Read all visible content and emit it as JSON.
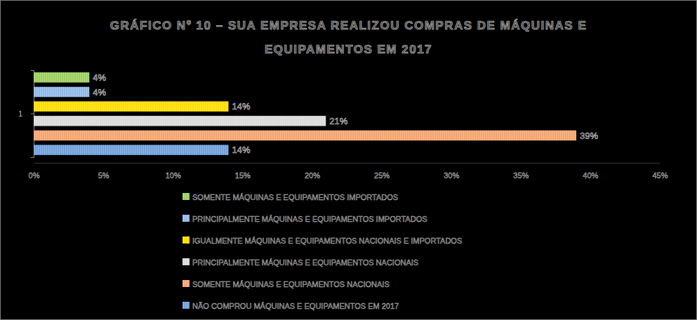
{
  "chart_data": {
    "type": "bar",
    "orientation": "horizontal",
    "title": "GRÁFICO Nº 10 – SUA EMPRESA REALIZOU COMPRAS DE MÁQUINAS E EQUIPAMENTOS EM 2017",
    "categories": [
      "1"
    ],
    "series": [
      {
        "name": "SOMENTE MÁQUINAS E EQUIPAMENTOS IMPORTADOS",
        "color": "#9bcf5a",
        "values": [
          4
        ],
        "value_labels": [
          "4%"
        ]
      },
      {
        "name": "PRINCIPALMENTE MÁQUINAS E EQUIPAMENTOS IMPORTADOS",
        "color": "#8fb8e6",
        "values": [
          4
        ],
        "value_labels": [
          "4%"
        ]
      },
      {
        "name": "IGUALMENTE MÁQUINAS E EQUIPAMENTOS NACIONAIS E IMPORTADOS",
        "color": "#ffdd00",
        "values": [
          14
        ],
        "value_labels": [
          "14%"
        ]
      },
      {
        "name": "PRINCIPALMENTE MÁQUINAS E EQUIPAMENTOS NACIONAIS",
        "color": "#d9d9d9",
        "values": [
          21
        ],
        "value_labels": [
          "21%"
        ]
      },
      {
        "name": "SOMENTE MÁQUINAS E EQUIPAMENTOS NACIONAIS",
        "color": "#f4a36c",
        "values": [
          39
        ],
        "value_labels": [
          "39%"
        ]
      },
      {
        "name": "NÃO COMPROU MÁQUINAS E EQUIPAMENTOS EM 2017",
        "color": "#6f9fdb",
        "values": [
          14
        ],
        "value_labels": [
          "14%"
        ]
      }
    ],
    "xlim": [
      0,
      45
    ],
    "xticks": [
      {
        "value": 0,
        "label": "0%"
      },
      {
        "value": 5,
        "label": "5%"
      },
      {
        "value": 10,
        "label": "10%"
      },
      {
        "value": 15,
        "label": "15%"
      },
      {
        "value": 20,
        "label": "20%"
      },
      {
        "value": 25,
        "label": "25%"
      },
      {
        "value": 30,
        "label": "30%"
      },
      {
        "value": 35,
        "label": "35%"
      },
      {
        "value": 40,
        "label": "40%"
      },
      {
        "value": 45,
        "label": "45%"
      }
    ],
    "grid": false,
    "legend": "bottom",
    "data_labels": true
  }
}
